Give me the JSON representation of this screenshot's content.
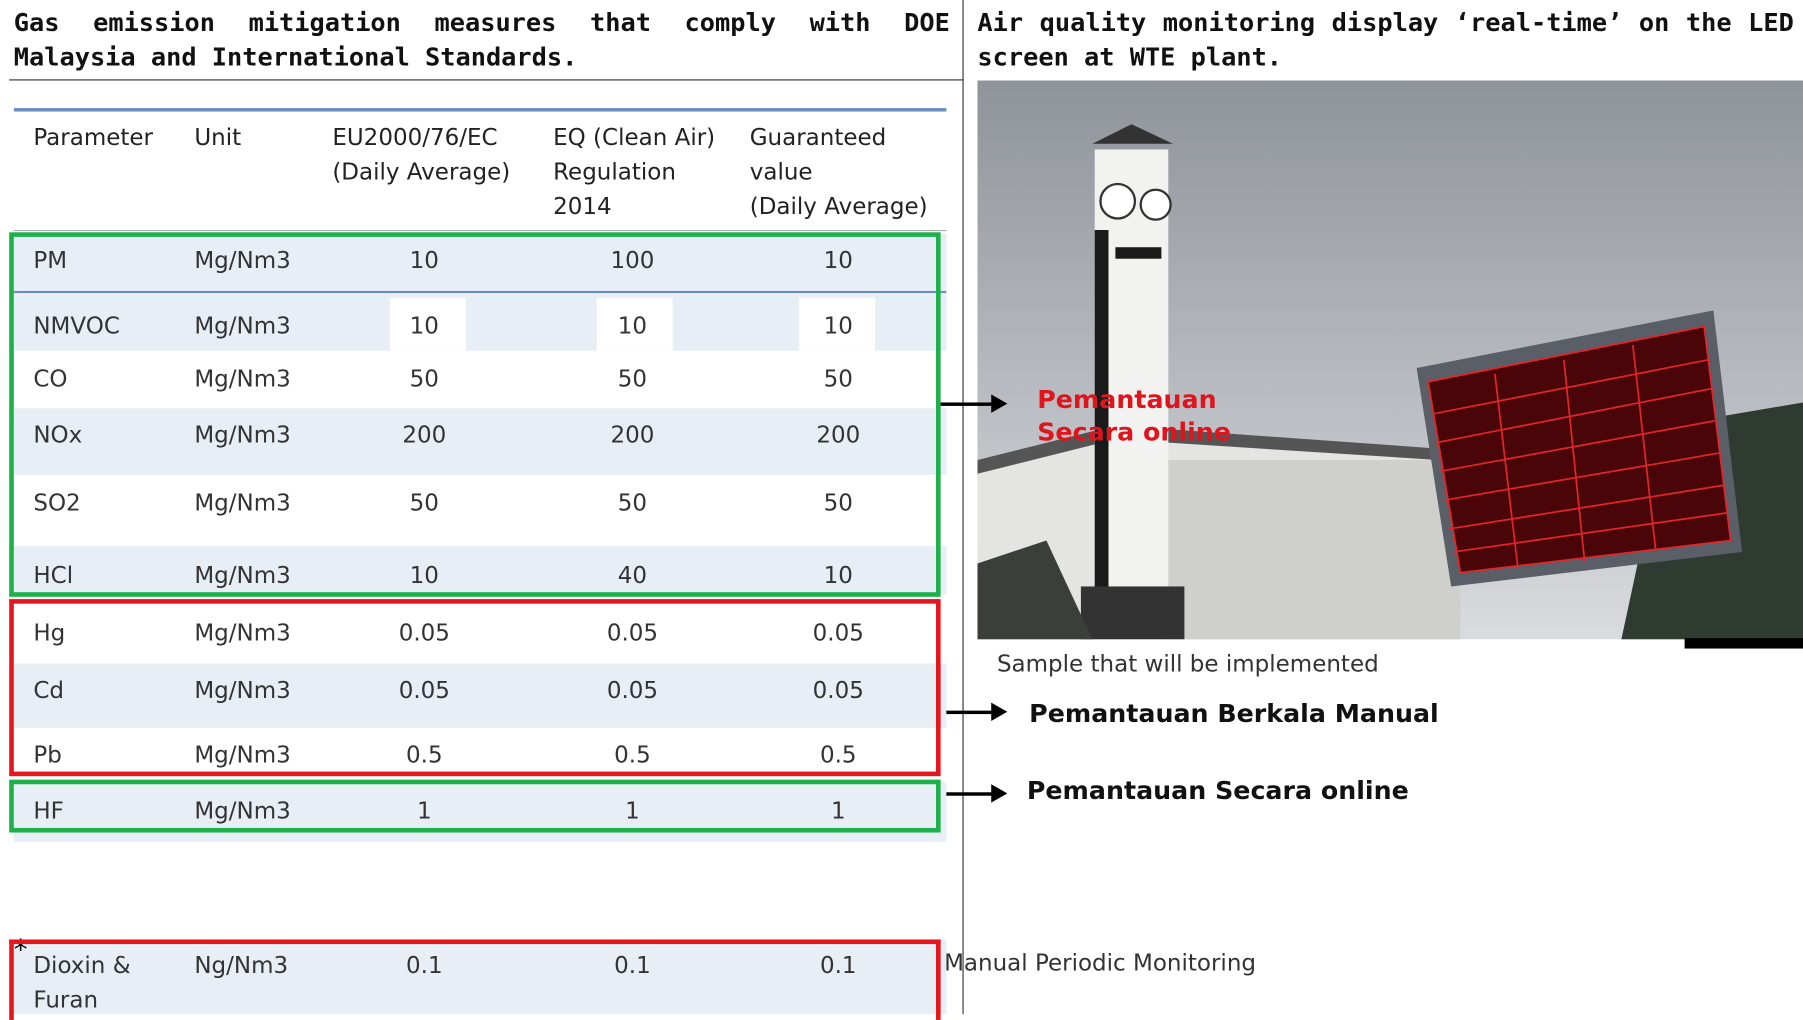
{
  "left_title": "Gas emission mitigation measures that comply with DOE Malaysia and International Standards.",
  "right_title": "Air quality monitoring display ‘real-time’ on the LED screen at WTE plant.",
  "table": {
    "header": [
      "Parameter",
      "Unit",
      "EU2000/76/EC\n(Daily Average)",
      "EQ (Clean Air)\nRegulation\n2014",
      "Guaranteed\nvalue\n(Daily Average)"
    ],
    "rows": [
      [
        "PM",
        "Mg/Nm3",
        "10",
        "100",
        "10"
      ],
      [
        "NMVOC",
        "Mg/Nm3",
        "10",
        "10",
        "10"
      ],
      [
        "CO",
        "Mg/Nm3",
        "50",
        "50",
        "50"
      ],
      [
        "NOx",
        "Mg/Nm3",
        "200",
        "200",
        "200"
      ],
      [
        "SO2",
        "Mg/Nm3",
        "50",
        "50",
        "50"
      ],
      [
        "HCl",
        "Mg/Nm3",
        "10",
        "40",
        "10"
      ],
      [
        "Hg",
        "Mg/Nm3",
        "0.05",
        "0.05",
        "0.05"
      ],
      [
        "Cd",
        "Mg/Nm3",
        "0.05",
        "0.05",
        "0.05"
      ],
      [
        "Pb",
        "Mg/Nm3",
        "0.5",
        "0.5",
        "0.5"
      ],
      [
        "HF",
        "Mg/Nm3",
        "1",
        "1",
        "1"
      ]
    ],
    "dioxin_mark": "*",
    "dioxin_row": [
      "Dioxin &\nFuran",
      "Ng/Nm3",
      "0.1",
      "0.1",
      "0.1"
    ]
  },
  "annotations": [
    "Pemantauan\nSecara online",
    "Pemantauan Berkala Manual",
    "Pemantauan Secara online",
    "Manual Periodic Monitoring"
  ],
  "photo_caption": "Sample that will be implemented"
}
